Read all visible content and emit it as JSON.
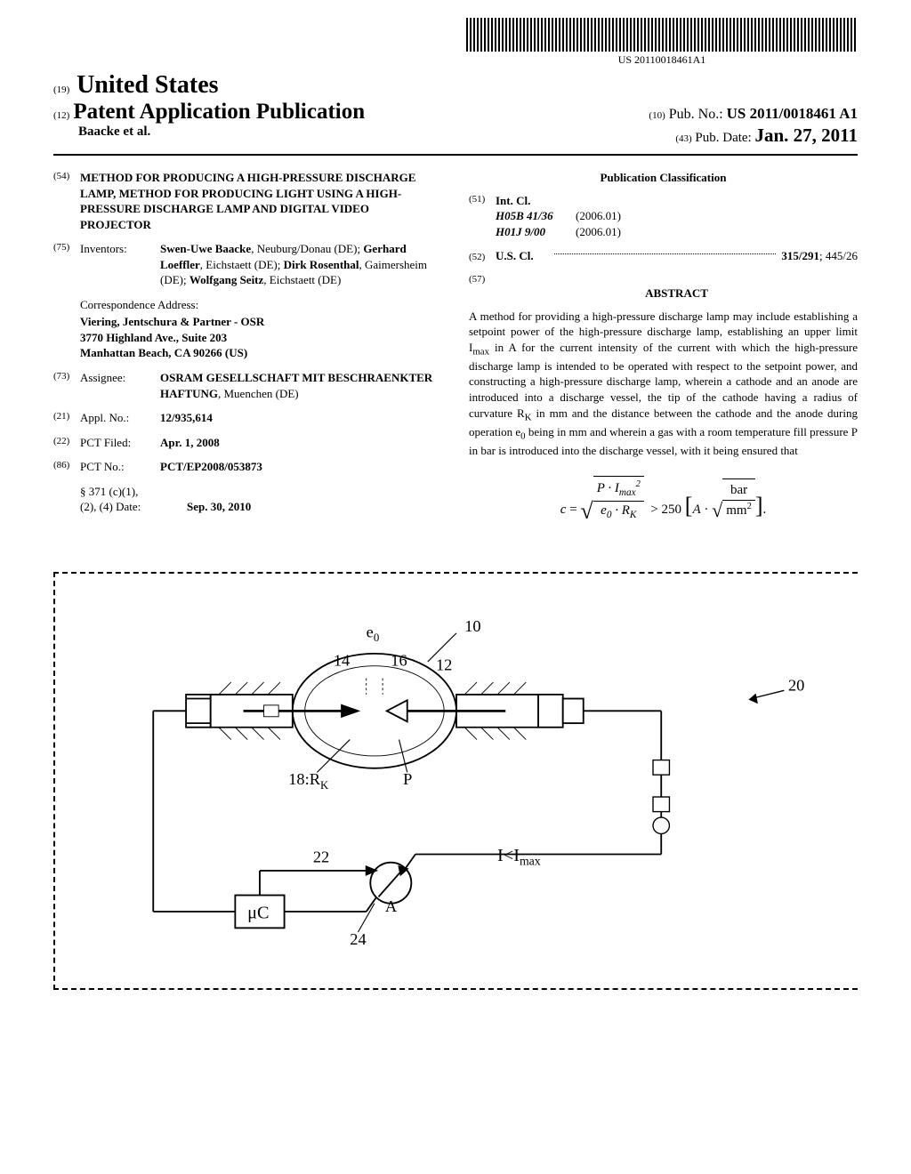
{
  "barcode_text": "US 20110018461A1",
  "country_num": "(19)",
  "country": "United States",
  "pub_type_num": "(12)",
  "pub_type": "Patent Application Publication",
  "pub_no_num": "(10)",
  "pub_no_label": "Pub. No.:",
  "pub_no": "US 2011/0018461 A1",
  "applicants": "Baacke et al.",
  "pub_date_num": "(43)",
  "pub_date_label": "Pub. Date:",
  "pub_date": "Jan. 27, 2011",
  "title_num": "(54)",
  "title": "METHOD FOR PRODUCING A HIGH-PRESSURE DISCHARGE LAMP, METHOD FOR PRODUCING LIGHT USING A HIGH-PRESSURE DISCHARGE LAMP AND DIGITAL VIDEO PROJECTOR",
  "inventors_num": "(75)",
  "inventors_label": "Inventors:",
  "inventors_html": "<b>Swen-Uwe Baacke</b>, Neuburg/Donau (DE); <b>Gerhard Loeffler</b>, Eichstaett (DE); <b>Dirk Rosenthal</b>, Gaimersheim (DE); <b>Wolfgang Seitz</b>, Eichstaett (DE)",
  "corr_label": "Correspondence Address:",
  "corr_lines": [
    "Viering, Jentschura & Partner - OSR",
    "3770 Highland Ave., Suite 203",
    "Manhattan Beach, CA 90266 (US)"
  ],
  "assignee_num": "(73)",
  "assignee_label": "Assignee:",
  "assignee_html": "<b>OSRAM GESELLSCHAFT MIT BESCHRAENKTER HAFTUNG</b>, Muenchen (DE)",
  "appl_num_num": "(21)",
  "appl_num_label": "Appl. No.:",
  "appl_num": "12/935,614",
  "pct_filed_num": "(22)",
  "pct_filed_label": "PCT Filed:",
  "pct_filed": "Apr. 1, 2008",
  "pct_no_num": "(86)",
  "pct_no_label": "PCT No.:",
  "pct_no": "PCT/EP2008/053873",
  "s371_label": "§ 371 (c)(1),",
  "s371_sub": "(2), (4) Date:",
  "s371_date": "Sep. 30, 2010",
  "class_heading": "Publication Classification",
  "intcl_num": "(51)",
  "intcl_label": "Int. Cl.",
  "intcl_rows": [
    {
      "code": "H05B 41/36",
      "year": "(2006.01)"
    },
    {
      "code": "H01J 9/00",
      "year": "(2006.01)"
    }
  ],
  "uscl_num": "(52)",
  "uscl_label": "U.S. Cl.",
  "uscl_val_bold": "315/291",
  "uscl_val_plain": "; 445/26",
  "abstract_num": "(57)",
  "abstract_heading": "ABSTRACT",
  "abstract_text": "A method for providing a high-pressure discharge lamp may include establishing a setpoint power of the high-pressure discharge lamp, establishing an upper limit I_max in A for the current intensity of the current with which the high-pressure discharge lamp is intended to be operated with respect to the setpoint power, and constructing a high-pressure discharge lamp, wherein a cathode and an anode are introduced into a discharge vessel, the tip of the cathode having a radius of curvature R_K in mm and the distance between the cathode and the anode during operation e₀ being in mm and wherein a gas with a room temperature fill pressure P in bar is introduced into the discharge vessel, with it being ensured that",
  "figure": {
    "labels": {
      "e0": "e₀",
      "ten": "10",
      "fourteen": "14",
      "sixteen": "16",
      "twelve": "12",
      "twenty": "20",
      "eighteen": "18:R_K",
      "p": "P",
      "twentytwo": "22",
      "imax": "I<I_max",
      "uc": "μC",
      "a": "A",
      "twentyfour": "24"
    }
  }
}
